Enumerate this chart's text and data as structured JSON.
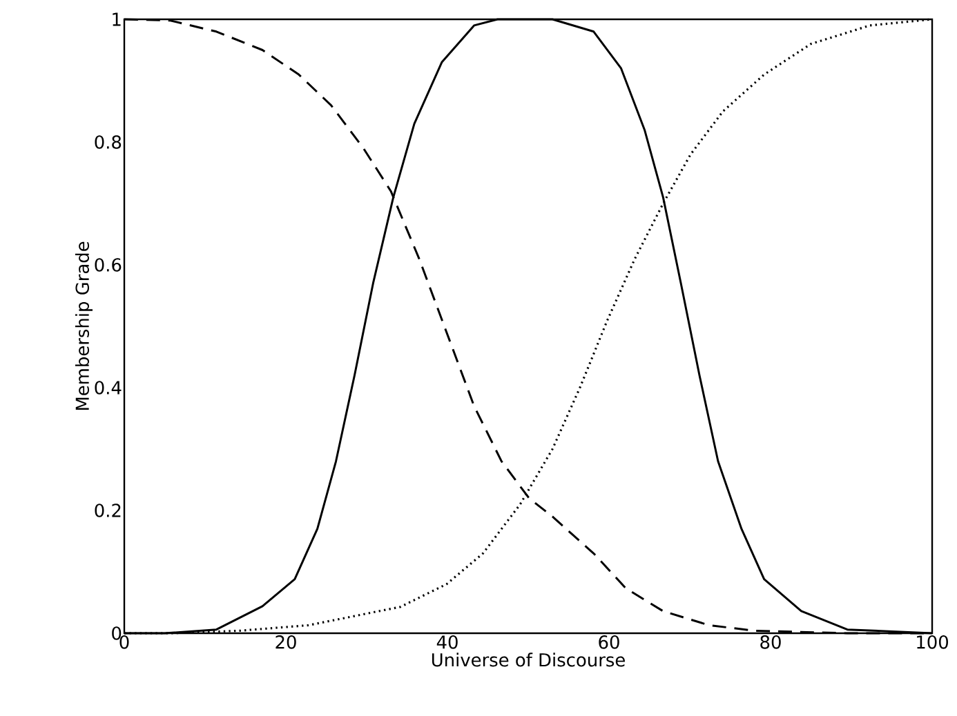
{
  "chart_data": {
    "type": "line",
    "xlabel": "Universe of Discourse",
    "ylabel": "Membership Grade",
    "xlim": [
      0,
      100
    ],
    "ylim": [
      0,
      1
    ],
    "xticks": [
      0,
      20,
      40,
      60,
      80,
      100
    ],
    "yticks": [
      0,
      0.2,
      0.4,
      0.6,
      0.8,
      1
    ],
    "grid": false,
    "marker": "none",
    "series": [
      {
        "color": "#000000",
        "line_style": "dashed",
        "x": [
          0,
          5.7,
          11.4,
          17.1,
          21.6,
          25.6,
          29.6,
          33,
          36.5,
          39.9,
          43.3,
          46.7,
          50.1,
          53,
          58.1,
          62.1,
          66.7,
          72.4,
          78.1,
          89.5,
          100
        ],
        "values": [
          1,
          0.998,
          0.98,
          0.95,
          0.91,
          0.86,
          0.79,
          0.72,
          0.61,
          0.49,
          0.37,
          0.28,
          0.22,
          0.19,
          0.13,
          0.073,
          0.036,
          0.013,
          0.004,
          0,
          0
        ]
      },
      {
        "color": "#000000",
        "line_style": "solid",
        "x": [
          0,
          5,
          11.4,
          17.1,
          21.1,
          23.9,
          26.2,
          28.5,
          30.8,
          33.3,
          35.9,
          39.3,
          43.3,
          46.2,
          53,
          58.1,
          61.5,
          64.4,
          66.7,
          68.9,
          71.2,
          73.5,
          76.4,
          79.2,
          83.8,
          89.5,
          100
        ],
        "values": [
          0,
          0,
          0.006,
          0.044,
          0.088,
          0.17,
          0.28,
          0.42,
          0.57,
          0.71,
          0.83,
          0.93,
          0.99,
          1,
          1,
          0.98,
          0.92,
          0.82,
          0.71,
          0.57,
          0.42,
          0.28,
          0.17,
          0.088,
          0.036,
          0.006,
          0
        ]
      },
      {
        "color": "#000000",
        "line_style": "dotted",
        "x": [
          0,
          5.7,
          14.2,
          22.8,
          28.5,
          34.2,
          39.9,
          44.4,
          49,
          53,
          56.4,
          59.8,
          63.2,
          66.7,
          70.1,
          74.1,
          79.2,
          85,
          92.3,
          100
        ],
        "values": [
          0,
          0,
          0.004,
          0.013,
          0.028,
          0.043,
          0.08,
          0.13,
          0.21,
          0.3,
          0.4,
          0.51,
          0.61,
          0.7,
          0.78,
          0.85,
          0.91,
          0.96,
          0.99,
          1
        ]
      }
    ]
  }
}
